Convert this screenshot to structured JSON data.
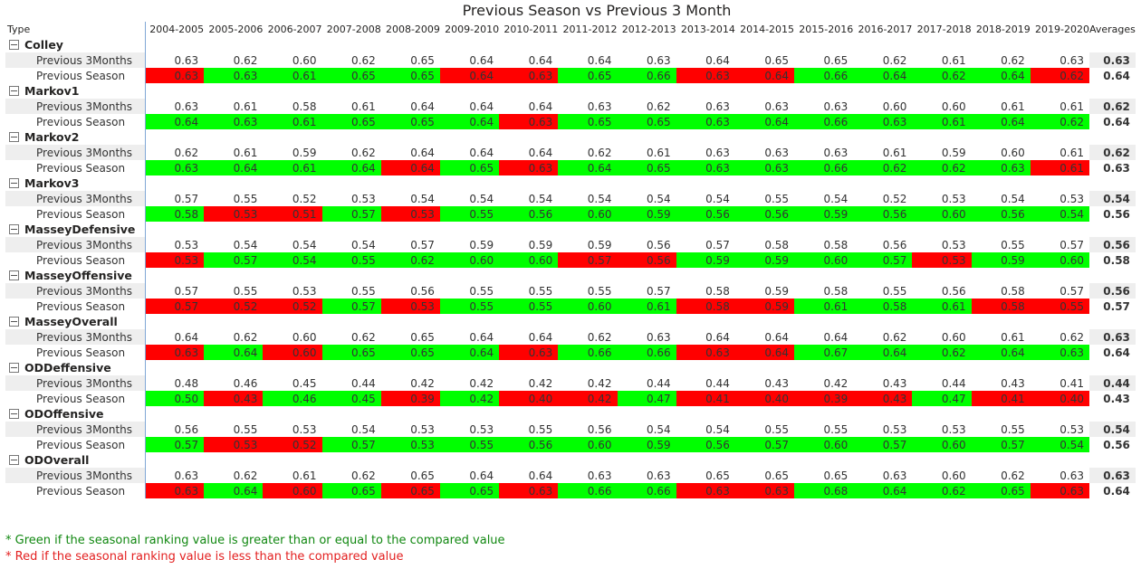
{
  "title": "Previous Season vs Previous 3 Month",
  "header": {
    "type_label": "Type",
    "averages_label": "Averages"
  },
  "seasons": [
    "2004-2005",
    "2005-2006",
    "2006-2007",
    "2007-2008",
    "2008-2009",
    "2009-2010",
    "2010-2011",
    "2011-2012",
    "2012-2013",
    "2013-2014",
    "2014-2015",
    "2015-2016",
    "2016-2017",
    "2017-2018",
    "2018-2019",
    "2019-2020"
  ],
  "row_labels": {
    "p3": "Previous 3Months",
    "ps": "Previous Season"
  },
  "colors": {
    "green": "#00ff00",
    "red": "#ff0000",
    "note_green": "#118811",
    "note_red": "#e32020"
  },
  "groups": [
    {
      "name": "Colley",
      "p3": [
        "0.63",
        "0.62",
        "0.60",
        "0.62",
        "0.65",
        "0.64",
        "0.64",
        "0.64",
        "0.63",
        "0.64",
        "0.65",
        "0.65",
        "0.62",
        "0.61",
        "0.62",
        "0.63"
      ],
      "p3_avg": "0.63",
      "ps": [
        "0.63",
        "0.63",
        "0.61",
        "0.65",
        "0.65",
        "0.64",
        "0.63",
        "0.65",
        "0.66",
        "0.63",
        "0.64",
        "0.66",
        "0.64",
        "0.62",
        "0.64",
        "0.62"
      ],
      "ps_avg": "0.64",
      "ps_status": [
        "r",
        "g",
        "g",
        "g",
        "g",
        "r",
        "r",
        "g",
        "g",
        "r",
        "r",
        "g",
        "g",
        "g",
        "g",
        "r"
      ]
    },
    {
      "name": "Markov1",
      "p3": [
        "0.63",
        "0.61",
        "0.58",
        "0.61",
        "0.64",
        "0.64",
        "0.64",
        "0.63",
        "0.62",
        "0.63",
        "0.63",
        "0.63",
        "0.60",
        "0.60",
        "0.61",
        "0.61"
      ],
      "p3_avg": "0.62",
      "ps": [
        "0.64",
        "0.63",
        "0.61",
        "0.65",
        "0.65",
        "0.64",
        "0.63",
        "0.65",
        "0.65",
        "0.63",
        "0.64",
        "0.66",
        "0.63",
        "0.61",
        "0.64",
        "0.62"
      ],
      "ps_avg": "0.64",
      "ps_status": [
        "g",
        "g",
        "g",
        "g",
        "g",
        "g",
        "r",
        "g",
        "g",
        "g",
        "g",
        "g",
        "g",
        "g",
        "g",
        "g"
      ]
    },
    {
      "name": "Markov2",
      "p3": [
        "0.62",
        "0.61",
        "0.59",
        "0.62",
        "0.64",
        "0.64",
        "0.64",
        "0.62",
        "0.61",
        "0.63",
        "0.63",
        "0.63",
        "0.61",
        "0.59",
        "0.60",
        "0.61"
      ],
      "p3_avg": "0.62",
      "ps": [
        "0.63",
        "0.64",
        "0.61",
        "0.64",
        "0.64",
        "0.65",
        "0.63",
        "0.64",
        "0.65",
        "0.63",
        "0.63",
        "0.66",
        "0.62",
        "0.62",
        "0.63",
        "0.61"
      ],
      "ps_avg": "0.63",
      "ps_status": [
        "g",
        "g",
        "g",
        "g",
        "r",
        "g",
        "r",
        "g",
        "g",
        "g",
        "g",
        "g",
        "g",
        "g",
        "g",
        "r"
      ]
    },
    {
      "name": "Markov3",
      "p3": [
        "0.57",
        "0.55",
        "0.52",
        "0.53",
        "0.54",
        "0.54",
        "0.54",
        "0.54",
        "0.54",
        "0.54",
        "0.55",
        "0.54",
        "0.52",
        "0.53",
        "0.54",
        "0.53"
      ],
      "p3_avg": "0.54",
      "ps": [
        "0.58",
        "0.53",
        "0.51",
        "0.57",
        "0.53",
        "0.55",
        "0.56",
        "0.60",
        "0.59",
        "0.56",
        "0.56",
        "0.59",
        "0.56",
        "0.60",
        "0.56",
        "0.54"
      ],
      "ps_avg": "0.56",
      "ps_status": [
        "g",
        "r",
        "r",
        "g",
        "r",
        "g",
        "g",
        "g",
        "g",
        "g",
        "g",
        "g",
        "g",
        "g",
        "g",
        "g"
      ]
    },
    {
      "name": "MasseyDefensive",
      "p3": [
        "0.53",
        "0.54",
        "0.54",
        "0.54",
        "0.57",
        "0.59",
        "0.59",
        "0.59",
        "0.56",
        "0.57",
        "0.58",
        "0.58",
        "0.56",
        "0.53",
        "0.55",
        "0.57"
      ],
      "p3_avg": "0.56",
      "ps": [
        "0.53",
        "0.57",
        "0.54",
        "0.55",
        "0.62",
        "0.60",
        "0.60",
        "0.57",
        "0.56",
        "0.59",
        "0.59",
        "0.60",
        "0.57",
        "0.53",
        "0.59",
        "0.60"
      ],
      "ps_avg": "0.58",
      "ps_status": [
        "r",
        "g",
        "g",
        "g",
        "g",
        "g",
        "g",
        "r",
        "r",
        "g",
        "g",
        "g",
        "g",
        "r",
        "g",
        "g"
      ]
    },
    {
      "name": "MasseyOffensive",
      "p3": [
        "0.57",
        "0.55",
        "0.53",
        "0.55",
        "0.56",
        "0.55",
        "0.55",
        "0.55",
        "0.57",
        "0.58",
        "0.59",
        "0.58",
        "0.55",
        "0.56",
        "0.58",
        "0.57"
      ],
      "p3_avg": "0.56",
      "ps": [
        "0.57",
        "0.52",
        "0.52",
        "0.57",
        "0.53",
        "0.55",
        "0.55",
        "0.60",
        "0.61",
        "0.58",
        "0.59",
        "0.61",
        "0.58",
        "0.61",
        "0.58",
        "0.55"
      ],
      "ps_avg": "0.57",
      "ps_status": [
        "r",
        "r",
        "r",
        "g",
        "r",
        "g",
        "g",
        "g",
        "g",
        "r",
        "r",
        "g",
        "g",
        "g",
        "r",
        "r"
      ]
    },
    {
      "name": "MasseyOverall",
      "p3": [
        "0.64",
        "0.62",
        "0.60",
        "0.62",
        "0.65",
        "0.64",
        "0.64",
        "0.62",
        "0.63",
        "0.64",
        "0.64",
        "0.64",
        "0.62",
        "0.60",
        "0.61",
        "0.62"
      ],
      "p3_avg": "0.63",
      "ps": [
        "0.63",
        "0.64",
        "0.60",
        "0.65",
        "0.65",
        "0.64",
        "0.63",
        "0.66",
        "0.66",
        "0.63",
        "0.64",
        "0.67",
        "0.64",
        "0.62",
        "0.64",
        "0.63"
      ],
      "ps_avg": "0.64",
      "ps_status": [
        "r",
        "g",
        "r",
        "g",
        "g",
        "g",
        "r",
        "g",
        "g",
        "r",
        "r",
        "g",
        "g",
        "g",
        "g",
        "g"
      ]
    },
    {
      "name": "ODDeffensive",
      "p3": [
        "0.48",
        "0.46",
        "0.45",
        "0.44",
        "0.42",
        "0.42",
        "0.42",
        "0.42",
        "0.44",
        "0.44",
        "0.43",
        "0.42",
        "0.43",
        "0.44",
        "0.43",
        "0.41"
      ],
      "p3_avg": "0.44",
      "ps": [
        "0.50",
        "0.43",
        "0.46",
        "0.45",
        "0.39",
        "0.42",
        "0.40",
        "0.42",
        "0.47",
        "0.41",
        "0.40",
        "0.39",
        "0.43",
        "0.47",
        "0.41",
        "0.40"
      ],
      "ps_avg": "0.43",
      "ps_status": [
        "g",
        "r",
        "g",
        "g",
        "r",
        "g",
        "r",
        "r",
        "g",
        "r",
        "r",
        "r",
        "r",
        "g",
        "r",
        "r"
      ]
    },
    {
      "name": "ODOffensive",
      "p3": [
        "0.56",
        "0.55",
        "0.53",
        "0.54",
        "0.53",
        "0.53",
        "0.55",
        "0.56",
        "0.54",
        "0.54",
        "0.55",
        "0.55",
        "0.53",
        "0.53",
        "0.55",
        "0.53"
      ],
      "p3_avg": "0.54",
      "ps": [
        "0.57",
        "0.53",
        "0.52",
        "0.57",
        "0.53",
        "0.55",
        "0.56",
        "0.60",
        "0.59",
        "0.56",
        "0.57",
        "0.60",
        "0.57",
        "0.60",
        "0.57",
        "0.54"
      ],
      "ps_avg": "0.56",
      "ps_status": [
        "g",
        "r",
        "r",
        "g",
        "g",
        "g",
        "g",
        "g",
        "g",
        "g",
        "g",
        "g",
        "g",
        "g",
        "g",
        "g"
      ]
    },
    {
      "name": "ODOverall",
      "p3": [
        "0.63",
        "0.62",
        "0.61",
        "0.62",
        "0.65",
        "0.64",
        "0.64",
        "0.63",
        "0.63",
        "0.65",
        "0.65",
        "0.65",
        "0.63",
        "0.60",
        "0.62",
        "0.63"
      ],
      "p3_avg": "0.63",
      "ps": [
        "0.63",
        "0.64",
        "0.60",
        "0.65",
        "0.65",
        "0.65",
        "0.63",
        "0.66",
        "0.66",
        "0.63",
        "0.63",
        "0.68",
        "0.64",
        "0.62",
        "0.65",
        "0.63"
      ],
      "ps_avg": "0.64",
      "ps_status": [
        "r",
        "g",
        "r",
        "g",
        "r",
        "g",
        "r",
        "g",
        "g",
        "r",
        "r",
        "g",
        "g",
        "g",
        "g",
        "r"
      ]
    }
  ],
  "footnotes": {
    "green": "* Green if the seasonal ranking value is greater than or equal to the compared value",
    "red": "* Red if the seasonal ranking value is less than the compared value"
  }
}
